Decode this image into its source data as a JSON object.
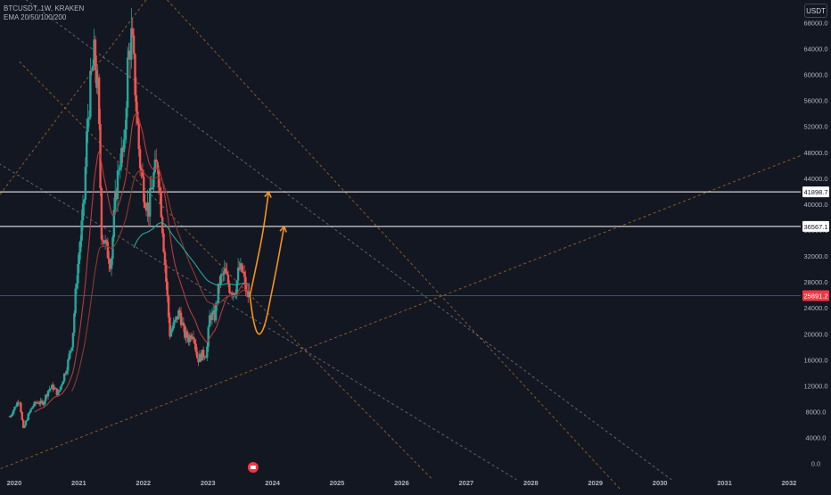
{
  "header": {
    "symbol_line": "BTCUSDT, 1W, KRAKEN",
    "indicator_line": "EMA 20/50/100/200",
    "currency_button": "USDT"
  },
  "colors": {
    "background": "#131722",
    "axis_text": "#b2b5be",
    "candle_up": "#26a69a",
    "candle_down": "#ef5350",
    "projection": "#f7931a",
    "dashed_trend": "#c9802b",
    "dashed_diag": "#8a8d96",
    "level_line": "#ffffff",
    "current_price_line": "#f23645",
    "ema_teal": "#26a69a",
    "ema_dark": "#8b3a2f",
    "ema_red": "#b83a3a"
  },
  "chart_data": {
    "type": "candlestick",
    "symbol": "BTCUSDT",
    "interval": "1W",
    "exchange": "KRAKEN",
    "x_ticks": [
      "2020",
      "2021",
      "2022",
      "2023",
      "2024",
      "2025",
      "2026",
      "2027",
      "2028",
      "2029",
      "2030",
      "2031",
      "2032"
    ],
    "x_range": [
      2019.8,
      2032.2
    ],
    "y_ticks": [
      "0.0",
      "4000.0",
      "8000.0",
      "12000.0",
      "16000.0",
      "20000.0",
      "24000.0",
      "28000.0",
      "32000.0",
      "36000.0",
      "40000.0",
      "44000.0",
      "48000.0",
      "52000.0",
      "56000.0",
      "60000.0",
      "64000.0",
      "68000.0"
    ],
    "y_range": [
      -1700,
      71500
    ],
    "price_axis_unit": "USDT",
    "horizontal_levels": [
      {
        "label": "41898.7",
        "value": 41898.7
      },
      {
        "label": "36567.1",
        "value": 36567.1
      }
    ],
    "current_price": {
      "label": "25891.2",
      "value": 25891.2
    },
    "price_path": [
      [
        2019.95,
        7200
      ],
      [
        2020.02,
        8500
      ],
      [
        2020.1,
        10000
      ],
      [
        2020.16,
        5200
      ],
      [
        2020.22,
        7000
      ],
      [
        2020.3,
        8800
      ],
      [
        2020.38,
        9500
      ],
      [
        2020.46,
        9200
      ],
      [
        2020.55,
        11400
      ],
      [
        2020.62,
        11800
      ],
      [
        2020.7,
        10700
      ],
      [
        2020.78,
        13200
      ],
      [
        2020.85,
        15500
      ],
      [
        2020.92,
        19000
      ],
      [
        2020.99,
        29000
      ],
      [
        2021.05,
        35000
      ],
      [
        2021.1,
        40000
      ],
      [
        2021.15,
        52000
      ],
      [
        2021.2,
        58000
      ],
      [
        2021.26,
        63000
      ],
      [
        2021.32,
        57000
      ],
      [
        2021.37,
        36000
      ],
      [
        2021.45,
        33000
      ],
      [
        2021.52,
        31000
      ],
      [
        2021.58,
        40000
      ],
      [
        2021.65,
        47000
      ],
      [
        2021.72,
        48000
      ],
      [
        2021.78,
        62000
      ],
      [
        2021.84,
        66000
      ],
      [
        2021.9,
        57000
      ],
      [
        2021.96,
        47000
      ],
      [
        2022.03,
        42000
      ],
      [
        2022.1,
        39000
      ],
      [
        2022.17,
        44000
      ],
      [
        2022.24,
        46500
      ],
      [
        2022.3,
        39000
      ],
      [
        2022.36,
        30000
      ],
      [
        2022.43,
        20000
      ],
      [
        2022.5,
        21500
      ],
      [
        2022.58,
        23500
      ],
      [
        2022.65,
        20000
      ],
      [
        2022.72,
        19300
      ],
      [
        2022.79,
        20500
      ],
      [
        2022.86,
        16000
      ],
      [
        2022.93,
        16800
      ],
      [
        2023.0,
        17000
      ],
      [
        2023.05,
        23000
      ],
      [
        2023.12,
        22500
      ],
      [
        2023.2,
        28000
      ],
      [
        2023.28,
        29500
      ],
      [
        2023.36,
        27000
      ],
      [
        2023.44,
        26500
      ],
      [
        2023.5,
        30000
      ],
      [
        2023.56,
        29500
      ],
      [
        2023.62,
        26000
      ],
      [
        2023.67,
        25891
      ]
    ],
    "projections": [
      {
        "points": [
          [
            2023.67,
            25891
          ],
          [
            2023.78,
            31000
          ],
          [
            2023.88,
            36000
          ],
          [
            2023.96,
            41898.7
          ]
        ]
      },
      {
        "points": [
          [
            2023.67,
            25891
          ],
          [
            2023.72,
            22000
          ],
          [
            2023.8,
            19500
          ],
          [
            2023.9,
            21000
          ],
          [
            2024.0,
            26000
          ],
          [
            2024.1,
            31000
          ],
          [
            2024.2,
            36567.1
          ]
        ]
      }
    ]
  }
}
